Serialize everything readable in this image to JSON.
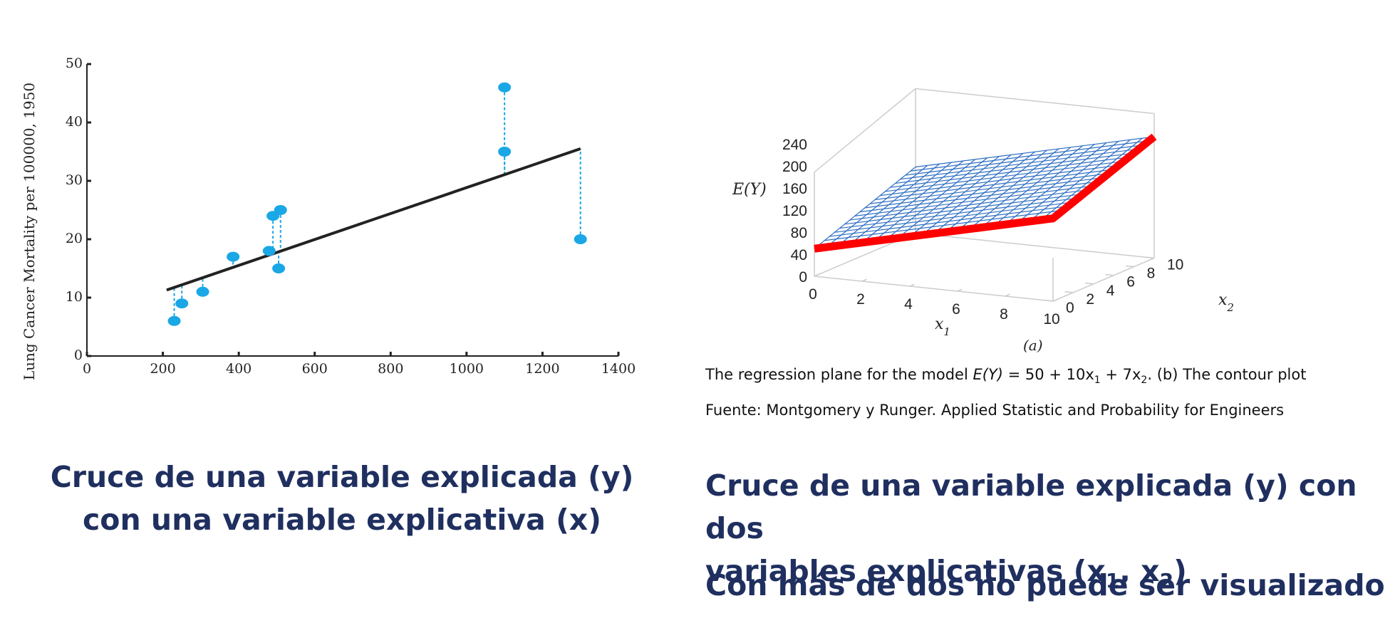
{
  "colors": {
    "heading": "#1f2f5f",
    "points": "#1aa7e6",
    "regression_line": "#222222",
    "plane_mesh": "#2f6fc4",
    "highlight_edge": "#ff0000",
    "box": "#cccccc"
  },
  "chart_data": [
    {
      "type": "scatter",
      "ylabel": "Lung Cancer Mortality per 100000, 1950",
      "xlabel": "",
      "xlim": [
        0,
        1400
      ],
      "ylim": [
        0,
        50
      ],
      "xticks": [
        0,
        200,
        400,
        600,
        800,
        1000,
        1200,
        1400
      ],
      "yticks": [
        0,
        10,
        20,
        30,
        40,
        50
      ],
      "points": [
        {
          "x": 230,
          "y": 6
        },
        {
          "x": 250,
          "y": 9
        },
        {
          "x": 305,
          "y": 11
        },
        {
          "x": 385,
          "y": 17
        },
        {
          "x": 480,
          "y": 18
        },
        {
          "x": 490,
          "y": 24
        },
        {
          "x": 505,
          "y": 15
        },
        {
          "x": 510,
          "y": 25
        },
        {
          "x": 1100,
          "y": 46
        },
        {
          "x": 1100,
          "y": 35
        },
        {
          "x": 1300,
          "y": 20
        }
      ],
      "regression_line": {
        "x": [
          210,
          1300
        ],
        "y": [
          11.3,
          35.5
        ]
      },
      "residual_lines": true
    },
    {
      "type": "surface",
      "model": "E(Y) = 50 + 10x1 + 7x2",
      "zlabel": "E(Y)",
      "x1label": "x1",
      "x2label": "x2",
      "sublabel": "(a)",
      "zticks": [
        0,
        40,
        80,
        120,
        160,
        200,
        240
      ],
      "x1ticks": [
        0,
        2,
        4,
        6,
        8,
        10
      ],
      "x2ticks": [
        0,
        2,
        4,
        6,
        8,
        10
      ],
      "corners": {
        "x1_0_x2_0": 50,
        "x1_10_x2_0": 150,
        "x1_0_x2_10": 120,
        "x1_10_x2_10": 220
      },
      "highlight_edges": [
        "x2 = 0",
        "x1 = 10"
      ]
    }
  ],
  "caption": {
    "line1_a": "The regression plane for the model ",
    "line1_ey": "E(Y)",
    "line1_b": " = 50 + 10x",
    "line1_sub1": "1",
    "line1_c": " + 7x",
    "line1_sub2": "2",
    "line1_d": ". (b) The contour plot",
    "source": "Fuente: Montgomery y Runger. Applied Statistic and Probability for Engineers"
  },
  "headings": {
    "left_line1": "Cruce de una variable explicada (y)",
    "left_line2": "con una variable explicativa (x)",
    "right_line1": "Cruce de una variable explicada (y) con dos",
    "right_line2_a": "variables explicativas (x",
    "right_line2_sub1": "1",
    "right_line2_b": ", x",
    "right_line2_sub2": "2",
    "right_line2_c": ")",
    "right_line3": "Con más de dos no puede ser visualizado"
  }
}
